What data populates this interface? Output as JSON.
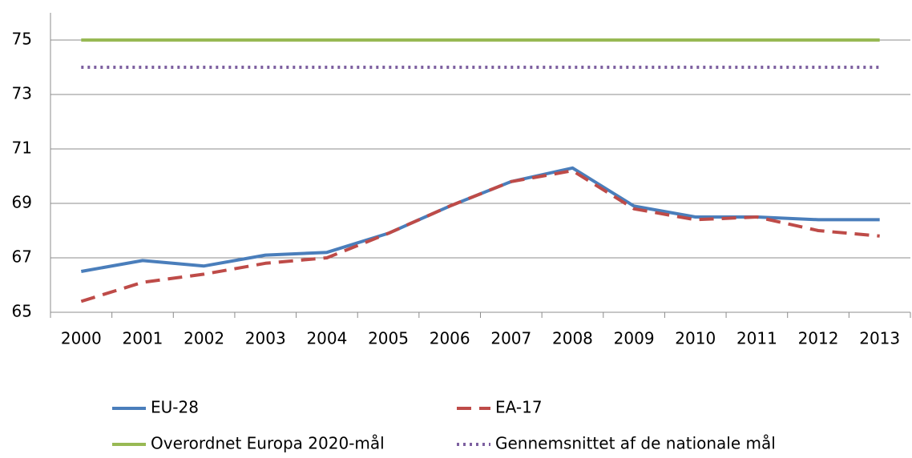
{
  "chart_data": {
    "type": "line",
    "categories": [
      "2000",
      "2001",
      "2002",
      "2003",
      "2004",
      "2005",
      "2006",
      "2007",
      "2008",
      "2009",
      "2010",
      "2011",
      "2012",
      "2013"
    ],
    "series": [
      {
        "name": "EU-28",
        "color": "#4a7ebb",
        "style": "solid",
        "values": [
          66.5,
          66.9,
          66.7,
          67.1,
          67.2,
          67.9,
          68.9,
          69.8,
          70.3,
          68.9,
          68.5,
          68.5,
          68.4,
          68.4
        ]
      },
      {
        "name": "EA-17",
        "color": "#be4b48",
        "style": "dashed",
        "values": [
          65.4,
          66.1,
          66.4,
          66.8,
          67.0,
          67.9,
          68.9,
          69.8,
          70.2,
          68.8,
          68.4,
          68.5,
          68.0,
          67.8
        ]
      },
      {
        "name": "Overordnet Europa 2020-mål",
        "color": "#98b954",
        "style": "solid",
        "values": [
          75,
          75,
          75,
          75,
          75,
          75,
          75,
          75,
          75,
          75,
          75,
          75,
          75,
          75
        ]
      },
      {
        "name": "Gennemsnittet af de nationale mål",
        "color": "#7d60a0",
        "style": "dotted",
        "values": [
          74,
          74,
          74,
          74,
          74,
          74,
          74,
          74,
          74,
          74,
          74,
          74,
          74,
          74
        ]
      }
    ],
    "ylim": [
      65,
      76
    ],
    "yticks": [
      65,
      67,
      69,
      71,
      73,
      75
    ],
    "grid": true,
    "legend": "bottom"
  }
}
